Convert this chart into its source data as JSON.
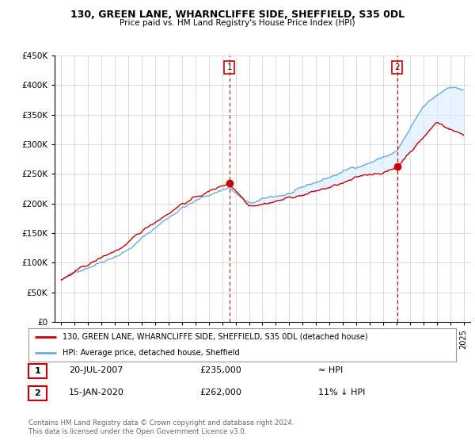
{
  "title": "130, GREEN LANE, WHARNCLIFFE SIDE, SHEFFIELD, S35 0DL",
  "subtitle": "Price paid vs. HM Land Registry's House Price Index (HPI)",
  "legend_line1": "130, GREEN LANE, WHARNCLIFFE SIDE, SHEFFIELD, S35 0DL (detached house)",
  "legend_line2": "HPI: Average price, detached house, Sheffield",
  "annotation1_date": "20-JUL-2007",
  "annotation1_price": "£235,000",
  "annotation1_hpi": "≈ HPI",
  "annotation2_date": "15-JAN-2020",
  "annotation2_price": "£262,000",
  "annotation2_hpi": "11% ↓ HPI",
  "footer": "Contains HM Land Registry data © Crown copyright and database right 2024.\nThis data is licensed under the Open Government Licence v3.0.",
  "sale1_year": 2007.54,
  "sale1_value": 235000,
  "sale2_year": 2020.04,
  "sale2_value": 262000,
  "hpi_color": "#6baed6",
  "price_color": "#cc0000",
  "fill_color": "#ddeeff",
  "background_color": "#ffffff",
  "grid_color": "#cccccc",
  "ylim_min": 0,
  "ylim_max": 450000,
  "xlim_min": 1994.5,
  "xlim_max": 2025.5
}
